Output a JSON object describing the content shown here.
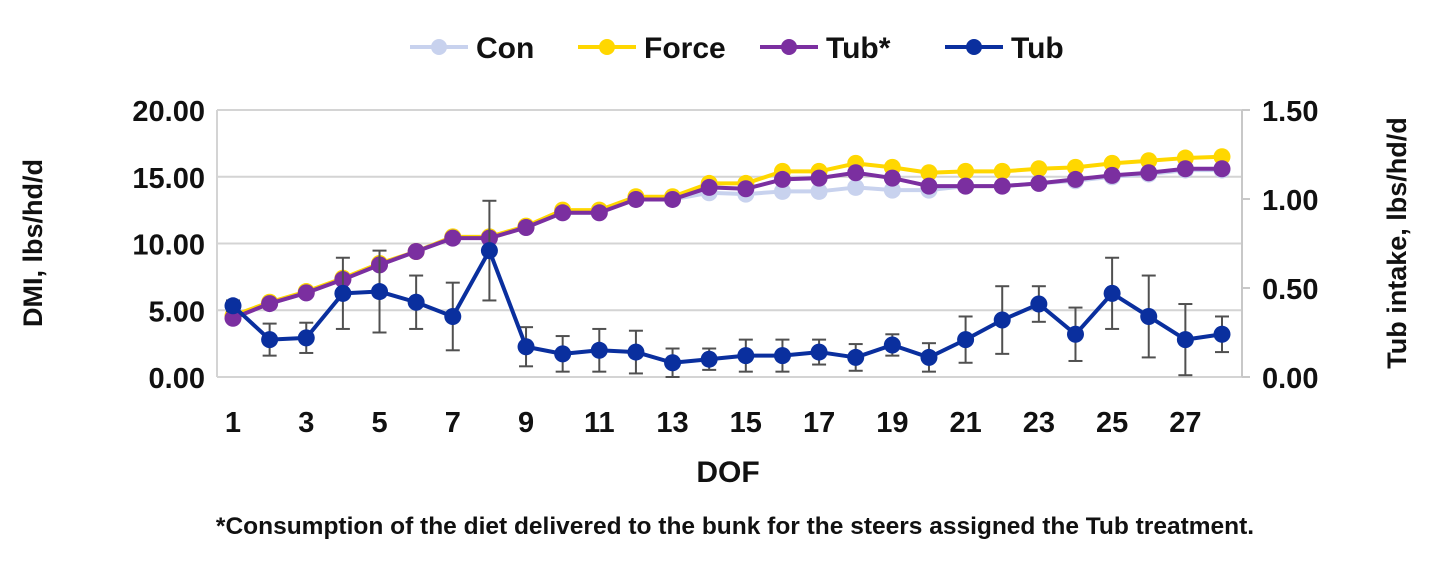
{
  "chart_data": {
    "type": "line",
    "xlabel": "DOF",
    "ylabel": "DMI, lbs/hd/d",
    "y2label": "Tub intake, lbs/hd/d",
    "footnote": "*Consumption of the diet delivered to the bunk for the steers assigned the Tub treatment.",
    "x": [
      1,
      2,
      3,
      4,
      5,
      6,
      7,
      8,
      9,
      10,
      11,
      12,
      13,
      14,
      15,
      16,
      17,
      18,
      19,
      20,
      21,
      22,
      23,
      24,
      25,
      26,
      27,
      28
    ],
    "xticks": [
      "1",
      "3",
      "5",
      "7",
      "9",
      "11",
      "13",
      "15",
      "17",
      "19",
      "21",
      "23",
      "25",
      "27"
    ],
    "xlim": [
      1,
      28
    ],
    "ylim": [
      0,
      20
    ],
    "yticks": [
      "0.00",
      "5.00",
      "10.00",
      "15.00",
      "20.00"
    ],
    "y2lim": [
      0,
      1.5
    ],
    "y2ticks": [
      "0.00",
      "0.50",
      "1.00",
      "1.50"
    ],
    "grid": true,
    "legend_position": "top",
    "series": [
      {
        "name": "Con",
        "axis": "left",
        "color": "#c8d2ee",
        "values": [
          4.5,
          5.5,
          6.3,
          7.3,
          8.4,
          9.4,
          10.5,
          10.5,
          11.2,
          12.3,
          12.3,
          13.3,
          13.3,
          13.8,
          13.7,
          13.9,
          13.9,
          14.2,
          14.0,
          14.0,
          14.3,
          14.3,
          14.5,
          14.7,
          15.0,
          15.2,
          15.5,
          15.5
        ]
      },
      {
        "name": "Force",
        "axis": "left",
        "color": "#ffd700",
        "values": [
          4.6,
          5.6,
          6.4,
          7.4,
          8.5,
          9.4,
          10.5,
          10.5,
          11.3,
          12.5,
          12.5,
          13.5,
          13.5,
          14.5,
          14.5,
          15.4,
          15.4,
          16.0,
          15.7,
          15.3,
          15.4,
          15.4,
          15.6,
          15.7,
          16.0,
          16.2,
          16.4,
          16.5
        ]
      },
      {
        "name": "Tub*",
        "axis": "left",
        "color": "#7b2fa0",
        "values": [
          4.4,
          5.5,
          6.3,
          7.3,
          8.4,
          9.4,
          10.4,
          10.4,
          11.2,
          12.3,
          12.3,
          13.3,
          13.3,
          14.2,
          14.1,
          14.8,
          14.9,
          15.3,
          14.9,
          14.3,
          14.3,
          14.3,
          14.5,
          14.8,
          15.1,
          15.3,
          15.6,
          15.6
        ]
      },
      {
        "name": "Tub",
        "axis": "right",
        "color": "#0a2f9e",
        "values": [
          0.4,
          0.21,
          0.22,
          0.47,
          0.48,
          0.42,
          0.34,
          0.71,
          0.17,
          0.13,
          0.15,
          0.14,
          0.08,
          0.1,
          0.12,
          0.12,
          0.14,
          0.11,
          0.18,
          0.11,
          0.21,
          0.32,
          0.41,
          0.24,
          0.47,
          0.34,
          0.21,
          0.24
        ],
        "error": [
          0.03,
          0.09,
          0.085,
          0.2,
          0.23,
          0.15,
          0.19,
          0.28,
          0.11,
          0.1,
          0.12,
          0.12,
          0.08,
          0.06,
          0.09,
          0.09,
          0.07,
          0.075,
          0.06,
          0.08,
          0.13,
          0.19,
          0.1,
          0.15,
          0.2,
          0.23,
          0.2,
          0.1
        ]
      }
    ]
  }
}
